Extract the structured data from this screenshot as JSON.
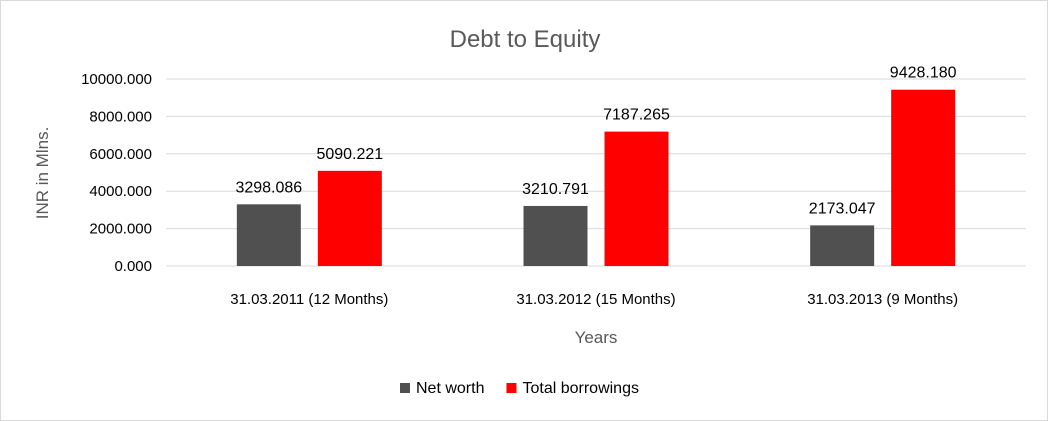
{
  "chart_data": {
    "type": "bar",
    "title": "Debt to Equity",
    "xlabel": "Years",
    "ylabel": "INR in Mlns.",
    "ylim": [
      0,
      10000
    ],
    "y_ticks": [
      "0.000",
      "2000.000",
      "4000.000",
      "6000.000",
      "8000.000",
      "10000.000"
    ],
    "y_tick_values": [
      0,
      2000,
      4000,
      6000,
      8000,
      10000
    ],
    "grid": true,
    "legend_position": "bottom",
    "categories": [
      "31.03.2011 (12 Months)",
      "31.03.2012 (15 Months)",
      "31.03.2013 (9 Months)"
    ],
    "series": [
      {
        "name": "Net worth",
        "color": "#505050",
        "values": [
          3298.086,
          3210.791,
          2173.047
        ],
        "labels": [
          "3298.086",
          "3210.791",
          "2173.047"
        ]
      },
      {
        "name": "Total borrowings",
        "color": "#ff0000",
        "values": [
          5090.221,
          7187.265,
          9428.18
        ],
        "labels": [
          "5090.221",
          "7187.265",
          "9428.180"
        ]
      }
    ]
  }
}
